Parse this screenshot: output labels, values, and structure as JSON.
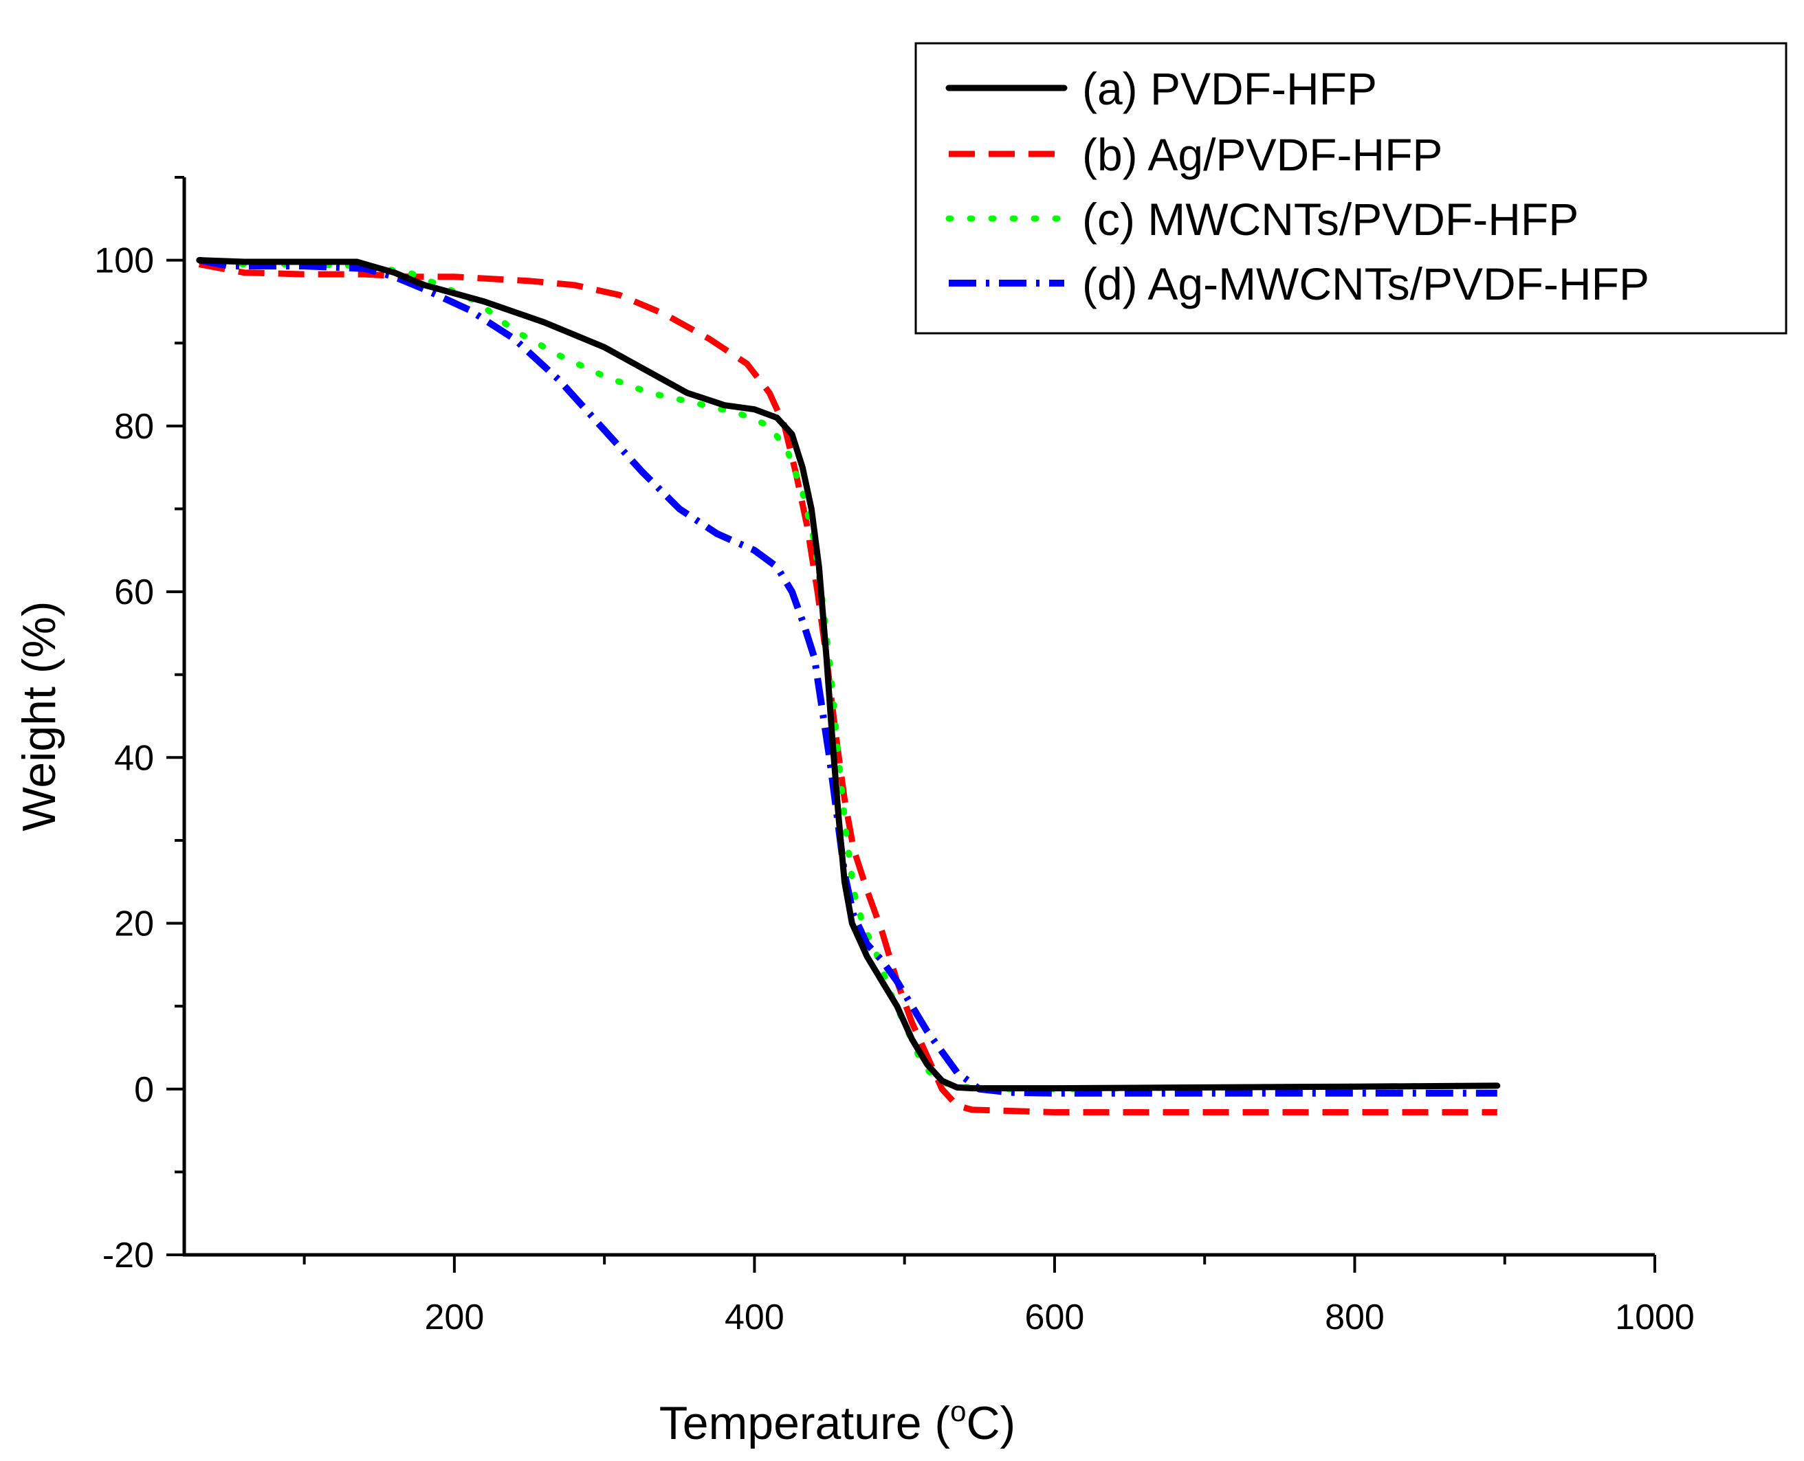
{
  "chart_data": {
    "type": "line",
    "title": "",
    "xlabel": "Temperature (oC)",
    "xlabel_main": "Temperature (",
    "xlabel_unit_sup": "o",
    "xlabel_unit_end": "C)",
    "ylabel": "Weight (%)",
    "xlim": [
      20,
      1000
    ],
    "ylim": [
      -20,
      110
    ],
    "x_ticks": [
      200,
      400,
      600,
      800,
      1000
    ],
    "x_tick_labels": [
      "200",
      "400",
      "600",
      "800",
      "1000"
    ],
    "y_ticks": [
      -20,
      0,
      20,
      40,
      60,
      80,
      100
    ],
    "y_tick_labels": [
      "-20",
      "0",
      "20",
      "40",
      "60",
      "80",
      "100"
    ],
    "grid": false,
    "legend_position": "top-right",
    "series": [
      {
        "name": "(a) PVDF-HFP",
        "color": "#000000",
        "style": "solid",
        "points": [
          [
            30,
            100
          ],
          [
            60,
            99.8
          ],
          [
            100,
            99.8
          ],
          [
            135,
            99.8
          ],
          [
            160,
            98.5
          ],
          [
            180,
            97
          ],
          [
            220,
            95
          ],
          [
            260,
            92.5
          ],
          [
            300,
            89.5
          ],
          [
            330,
            86.5
          ],
          [
            355,
            84
          ],
          [
            380,
            82.5
          ],
          [
            400,
            82
          ],
          [
            415,
            81
          ],
          [
            425,
            79
          ],
          [
            432,
            75
          ],
          [
            438,
            70
          ],
          [
            443,
            63
          ],
          [
            448,
            52
          ],
          [
            452,
            42
          ],
          [
            456,
            33
          ],
          [
            460,
            25
          ],
          [
            465,
            20
          ],
          [
            475,
            16
          ],
          [
            485,
            13
          ],
          [
            495,
            10
          ],
          [
            505,
            6
          ],
          [
            515,
            3
          ],
          [
            525,
            1
          ],
          [
            535,
            0.2
          ],
          [
            545,
            0.1
          ],
          [
            600,
            0.1
          ],
          [
            700,
            0.2
          ],
          [
            800,
            0.3
          ],
          [
            895,
            0.4
          ]
        ]
      },
      {
        "name": "(b) Ag/PVDF-HFP",
        "color": "#ff0000",
        "style": "dashed",
        "points": [
          [
            30,
            99.5
          ],
          [
            45,
            99
          ],
          [
            60,
            98.5
          ],
          [
            100,
            98.3
          ],
          [
            140,
            98.3
          ],
          [
            170,
            98
          ],
          [
            200,
            98
          ],
          [
            250,
            97.5
          ],
          [
            280,
            97
          ],
          [
            310,
            95.8
          ],
          [
            340,
            93.5
          ],
          [
            370,
            90.5
          ],
          [
            395,
            87.5
          ],
          [
            410,
            84
          ],
          [
            420,
            80
          ],
          [
            428,
            74
          ],
          [
            435,
            68
          ],
          [
            442,
            60
          ],
          [
            448,
            52
          ],
          [
            454,
            43
          ],
          [
            460,
            35
          ],
          [
            466,
            29
          ],
          [
            475,
            24
          ],
          [
            485,
            19
          ],
          [
            495,
            13
          ],
          [
            505,
            8
          ],
          [
            515,
            4
          ],
          [
            525,
            0
          ],
          [
            535,
            -2
          ],
          [
            545,
            -2.5
          ],
          [
            600,
            -2.8
          ],
          [
            700,
            -2.8
          ],
          [
            800,
            -2.8
          ],
          [
            895,
            -2.8
          ]
        ]
      },
      {
        "name": "(c) MWCNTs/PVDF-HFP",
        "color": "#00ff00",
        "style": "dotted",
        "points": [
          [
            30,
            100
          ],
          [
            60,
            99.5
          ],
          [
            100,
            99.5
          ],
          [
            140,
            99.3
          ],
          [
            170,
            98.5
          ],
          [
            190,
            97
          ],
          [
            215,
            95
          ],
          [
            240,
            91.5
          ],
          [
            270,
            88.5
          ],
          [
            300,
            86
          ],
          [
            330,
            84
          ],
          [
            360,
            82.8
          ],
          [
            390,
            81.5
          ],
          [
            410,
            80
          ],
          [
            422,
            77
          ],
          [
            432,
            72
          ],
          [
            440,
            66
          ],
          [
            446,
            58
          ],
          [
            451,
            50
          ],
          [
            456,
            40
          ],
          [
            461,
            31
          ],
          [
            466,
            24
          ],
          [
            472,
            20
          ],
          [
            482,
            16
          ],
          [
            492,
            11
          ],
          [
            502,
            7
          ],
          [
            512,
            3
          ],
          [
            522,
            1
          ],
          [
            535,
            0.3
          ],
          [
            560,
            0
          ],
          [
            600,
            0
          ],
          [
            700,
            0.2
          ],
          [
            800,
            0.3
          ],
          [
            895,
            0.4
          ]
        ]
      },
      {
        "name": "(d) Ag-MWCNTs/PVDF-HFP",
        "color": "#0000ff",
        "style": "dashdot",
        "points": [
          [
            30,
            100
          ],
          [
            50,
            99.3
          ],
          [
            100,
            99.3
          ],
          [
            140,
            99
          ],
          [
            160,
            98
          ],
          [
            180,
            96.5
          ],
          [
            210,
            94
          ],
          [
            240,
            90.5
          ],
          [
            270,
            85.5
          ],
          [
            300,
            79.5
          ],
          [
            325,
            74.5
          ],
          [
            350,
            70
          ],
          [
            375,
            67
          ],
          [
            400,
            65
          ],
          [
            415,
            63
          ],
          [
            425,
            60
          ],
          [
            433,
            56
          ],
          [
            440,
            52
          ],
          [
            445,
            46
          ],
          [
            450,
            40
          ],
          [
            455,
            33
          ],
          [
            460,
            26
          ],
          [
            466,
            21
          ],
          [
            475,
            17.5
          ],
          [
            485,
            15.5
          ],
          [
            495,
            13
          ],
          [
            505,
            10
          ],
          [
            515,
            7
          ],
          [
            525,
            4.5
          ],
          [
            535,
            2
          ],
          [
            550,
            0
          ],
          [
            570,
            -0.4
          ],
          [
            600,
            -0.5
          ],
          [
            700,
            -0.5
          ],
          [
            800,
            -0.5
          ],
          [
            895,
            -0.5
          ]
        ]
      }
    ]
  }
}
